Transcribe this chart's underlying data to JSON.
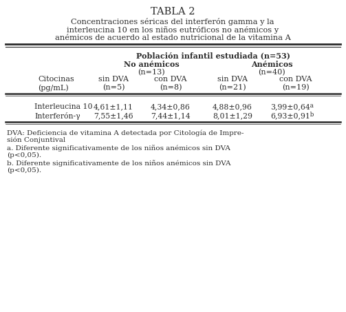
{
  "title": "TABLA 2",
  "subtitle_line1": "Concentraciones séricas del interferón gamma y la",
  "subtitle_line2": "interleucina 10 en los niños eutróficos no anémicos y",
  "subtitle_line3": "anémicos de acuerdo al estado nutricional de la vitamina A",
  "header_main": "Población infantil estudiada (n=53)",
  "header_left_bold": "No anémicos",
  "header_right_bold": "Anémicos",
  "header_left_n": "(n=13)",
  "header_right_n": "(n=40)",
  "col0_line1": "Citocinas",
  "col0_line2": "(pg/mL)",
  "col1_line1": "sin DVA",
  "col1_line2": "(n=5)",
  "col2_line1": "con DVA",
  "col2_line2": "(n=8)",
  "col3_line1": "sin DVA",
  "col3_line2": "(n=21)",
  "col4_line1": "con DVA",
  "col4_line2": "(n=19)",
  "row1_label": "Interleucina 10",
  "row1_v1": "4,61±1,11",
  "row1_v2": "4,34±0,86",
  "row1_v3": "4,88±0,96",
  "row1_v4": "3,99±0,64",
  "row1_sup": " a",
  "row2_label": "Interferón-γ",
  "row2_v1": "7,55±1,46",
  "row2_v2": "7,44±1,14",
  "row2_v3": "8,01±1,29",
  "row2_v4": "6,93±0,91",
  "row2_sup": " b",
  "fn1_line1": "DVA: Deficiencia de vitamina A detectada por Citología de Impre-",
  "fn1_line2": "sión Conjuntival",
  "fn2_line1": "a. Diferente significativamente de los niños anémicos sin DVA",
  "fn2_line2": "(p<0,05).",
  "fn3_line1": "b. Diferente significativamente de los niños anémicos sin DVA",
  "fn3_line2": "(p<0,05).",
  "bg_color": "#ffffff",
  "text_color": "#2a2a2a",
  "line_color": "#2a2a2a"
}
